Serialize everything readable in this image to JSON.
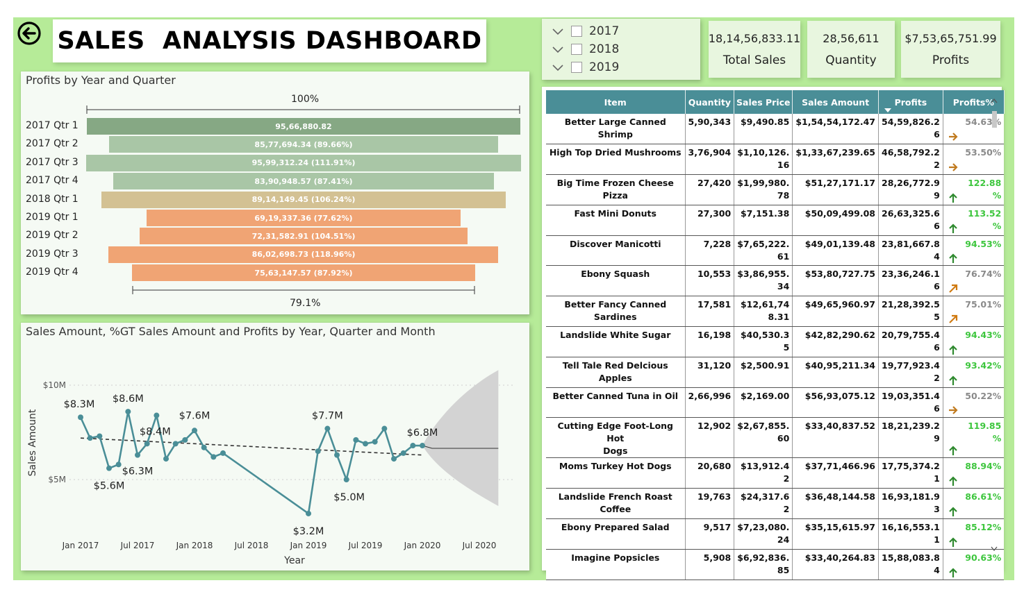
{
  "dashboard": {
    "title": "SALES  ANALYSIS DASHBOARD",
    "back_icon": "back-arrow-icon"
  },
  "funnel": {
    "title": "Profits by Year and Quarter",
    "top_label": "100%",
    "bottom_label": "79.1%",
    "rows": [
      {
        "label": "2017 Qtr 1",
        "text": "95,66,880.82",
        "value": 9566880.82,
        "color": "#86a884"
      },
      {
        "label": "2017 Qtr 2",
        "text": "85,77,694.34 (89.66%)",
        "value": 8577694.34,
        "color": "#a9c6a6"
      },
      {
        "label": "2017 Qtr 3",
        "text": "95,99,312.24 (111.91%)",
        "value": 9599312.24,
        "color": "#a9c6a6"
      },
      {
        "label": "2017 Qtr 4",
        "text": "83,90,948.57 (87.41%)",
        "value": 8390948.57,
        "color": "#a9c6a6"
      },
      {
        "label": "2018 Qtr 1",
        "text": "89,14,149.45 (106.24%)",
        "value": 8914149.45,
        "color": "#d3c193"
      },
      {
        "label": "2019 Qtr 1",
        "text": "69,19,337.36 (77.62%)",
        "value": 6919337.36,
        "color": "#f0a474"
      },
      {
        "label": "2019 Qtr 2",
        "text": "72,31,582.91 (104.51%)",
        "value": 7231582.91,
        "color": "#f0a474"
      },
      {
        "label": "2019 Qtr 3",
        "text": "86,02,698.73 (118.96%)",
        "value": 8602698.73,
        "color": "#f0a474"
      },
      {
        "label": "2019 Qtr 4",
        "text": "75,63,147.57 (87.92%)",
        "value": 7563147.57,
        "color": "#f0a474"
      }
    ]
  },
  "line_chart": {
    "title": "Sales Amount, %GT Sales Amount and Profits by Year, Quarter and Month"
  },
  "chart_data": {
    "type": "line",
    "xlabel": "Year",
    "ylabel": "Sales Amount",
    "y_ticks": [
      "$10M",
      "$5M"
    ],
    "x_ticks": [
      "Jan 2017",
      "Jul 2017",
      "Jan 2018",
      "Jul 2018",
      "Jan 2019",
      "Jul 2019",
      "Jan 2020",
      "Jul 2020"
    ],
    "ylim": [
      3.0,
      10.0
    ],
    "series": [
      {
        "x": [
          "2017-01",
          "2017-02",
          "2017-03",
          "2017-04",
          "2017-05",
          "2017-06",
          "2017-07",
          "2017-08",
          "2017-09",
          "2017-10",
          "2017-11",
          "2017-12",
          "2018-01",
          "2018-02",
          "2018-03",
          "2018-04",
          "2019-01",
          "2019-02",
          "2019-03",
          "2019-04",
          "2019-05",
          "2019-06",
          "2019-07",
          "2019-08",
          "2019-09",
          "2019-10",
          "2019-11",
          "2019-12",
          "2020-01"
        ],
        "values": [
          8.3,
          7.2,
          7.3,
          5.6,
          5.8,
          8.6,
          6.3,
          6.9,
          8.4,
          6.1,
          6.9,
          7.1,
          7.6,
          6.7,
          6.2,
          6.4,
          3.2,
          6.5,
          7.7,
          6.3,
          5.0,
          7.1,
          6.9,
          7.0,
          7.7,
          6.1,
          6.4,
          6.8,
          6.8
        ]
      }
    ],
    "data_labels": [
      "$8.3M",
      "$8.6M",
      "$8.4M",
      "$7.6M",
      "$7.7M",
      "$6.8M",
      "$6.3M",
      "$5.6M",
      "$5.0M",
      "$3.2M"
    ],
    "trend_line": "dashed",
    "forecast": {
      "band": "gray",
      "to": "2020-09"
    },
    "grid": true
  },
  "slicer": {
    "items": [
      {
        "label": "2017",
        "checked": false
      },
      {
        "label": "2018",
        "checked": false
      },
      {
        "label": "2019",
        "checked": false
      }
    ]
  },
  "kpis": [
    {
      "value": "18,14,56,833.11",
      "label": "Total Sales"
    },
    {
      "value": "28,56,611",
      "label": "Quantity"
    },
    {
      "value": "$7,53,65,751.99",
      "label": "Profits"
    }
  ],
  "table": {
    "headers": [
      "Item",
      "Quantity",
      "Sales Price",
      "Sales Amount",
      "Profits",
      "Profits%"
    ],
    "sort_indicator_icon": "sort-down-icon",
    "rows": [
      {
        "item": "Better Large Canned Shrimp",
        "qty": "5,90,343",
        "price": "$9,490.85",
        "amount": "$1,54,54,172.47",
        "profit": "54,59,826.2\n6",
        "pct": "54.63%",
        "pct_color": "#8a8a8a",
        "arrow": "right-arrow-icon"
      },
      {
        "item": "High Top Dried Mushrooms",
        "qty": "3,76,904",
        "price": "$1,10,126.\n16",
        "amount": "$1,33,67,239.65",
        "profit": "46,58,792.2\n2",
        "pct": "53.50%",
        "pct_color": "#8a8a8a",
        "arrow": "right-arrow-icon"
      },
      {
        "item": "Big Time Frozen Cheese Pizza",
        "qty": "27,420",
        "price": "$1,99,980.\n78",
        "amount": "$51,27,171.17",
        "profit": "28,26,772.9\n9",
        "pct": "122.88\n%",
        "pct_color": "#3ec63e",
        "arrow": "up-arrow-icon"
      },
      {
        "item": "Fast Mini Donuts",
        "qty": "27,300",
        "price": "$7,151.38",
        "amount": "$50,09,499.08",
        "profit": "26,63,325.6\n6",
        "pct": "113.52\n%",
        "pct_color": "#3ec63e",
        "arrow": "up-arrow-icon"
      },
      {
        "item": "Discover Manicotti",
        "qty": "7,228",
        "price": "$7,65,222.\n61",
        "amount": "$49,01,139.48",
        "profit": "23,81,667.8\n4",
        "pct": "94.53%",
        "pct_color": "#3ec63e",
        "arrow": "up-arrow-icon"
      },
      {
        "item": "Ebony Squash",
        "qty": "10,553",
        "price": "$3,86,955.\n34",
        "amount": "$53,80,727.75",
        "profit": "23,36,246.1\n6",
        "pct": "76.74%",
        "pct_color": "#8a8a8a",
        "arrow": "up-right-arrow-icon"
      },
      {
        "item": "Better Fancy Canned Sardines",
        "qty": "17,581",
        "price": "$12,61,74\n8.31",
        "amount": "$49,65,960.97",
        "profit": "21,28,392.5\n5",
        "pct": "75.01%",
        "pct_color": "#8a8a8a",
        "arrow": "up-right-arrow-icon"
      },
      {
        "item": "Landslide White Sugar",
        "qty": "16,198",
        "price": "$40,530.3\n5",
        "amount": "$42,82,290.62",
        "profit": "20,79,755.4\n6",
        "pct": "94.43%",
        "pct_color": "#3ec63e",
        "arrow": "up-arrow-icon"
      },
      {
        "item": "Tell Tale Red Delcious Apples",
        "qty": "31,120",
        "price": "$2,500.91",
        "amount": "$40,95,211.34",
        "profit": "19,77,923.4\n2",
        "pct": "93.42%",
        "pct_color": "#3ec63e",
        "arrow": "up-arrow-icon"
      },
      {
        "item": "Better Canned Tuna in Oil",
        "qty": "2,66,996",
        "price": "$2,169.00",
        "amount": "$56,93,075.12",
        "profit": "19,03,351.4\n6",
        "pct": "50.22%",
        "pct_color": "#8a8a8a",
        "arrow": "right-arrow-icon"
      },
      {
        "item": "Cutting Edge Foot-Long Hot\nDogs",
        "qty": "12,902",
        "price": "$2,67,855.\n60",
        "amount": "$33,40,837.52",
        "profit": "18,21,239.2\n9",
        "pct": "119.85\n%",
        "pct_color": "#3ec63e",
        "arrow": "up-arrow-icon"
      },
      {
        "item": "Moms Turkey Hot Dogs",
        "qty": "20,680",
        "price": "$13,912.4\n2",
        "amount": "$37,71,466.96",
        "profit": "17,75,374.2\n1",
        "pct": "88.94%",
        "pct_color": "#3ec63e",
        "arrow": "up-arrow-icon"
      },
      {
        "item": "Landslide French Roast\nCoffee",
        "qty": "19,763",
        "price": "$24,317.6\n2",
        "amount": "$36,48,144.58",
        "profit": "16,93,181.9\n3",
        "pct": "86.61%",
        "pct_color": "#3ec63e",
        "arrow": "up-arrow-icon"
      },
      {
        "item": "Ebony Prepared Salad",
        "qty": "9,517",
        "price": "$7,23,080.\n24",
        "amount": "$35,15,615.97",
        "profit": "16,16,553.1\n1",
        "pct": "85.12%",
        "pct_color": "#3ec63e",
        "arrow": "up-arrow-icon"
      },
      {
        "item": "Imagine Popsicles",
        "qty": "5,908",
        "price": "$6,92,836.\n85",
        "amount": "$33,40,264.83",
        "profit": "15,88,083.8\n4",
        "pct": "90.63%",
        "pct_color": "#3ec63e",
        "arrow": "up-arrow-icon"
      }
    ]
  }
}
